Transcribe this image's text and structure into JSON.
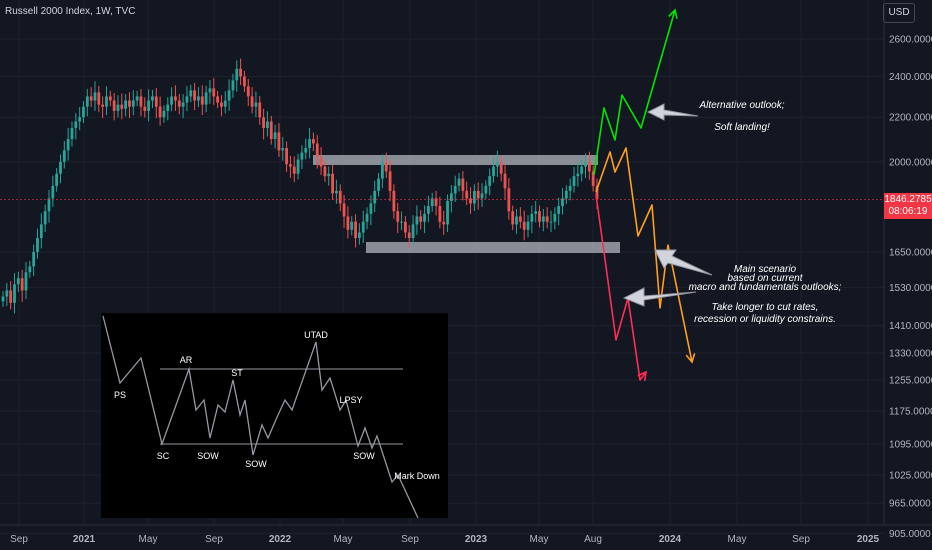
{
  "header": {
    "title": "Russell 2000 Index, 1W, TVC",
    "currency_button": "USD"
  },
  "last_price": {
    "value": "1846.2785",
    "countdown": "08:06:19",
    "color": "#f23645"
  },
  "annotations": {
    "alt_line1": "Alternative outlook;",
    "alt_line2": "Soft landing!",
    "main_line1": "Main scenario",
    "main_line2": "based on current",
    "main_line3": "macro and fundamentals outlooks;",
    "main_line4": "Take longer to cut rates,",
    "main_line5": "recession or liquidity constrains."
  },
  "wyckoff_labels": [
    "PS",
    "AR",
    "ST",
    "UTAD",
    "LPSY",
    "SC",
    "SOW",
    "SOW",
    "SOW",
    "Mark Down"
  ],
  "colors": {
    "up": "#26a69a",
    "down": "#ef5350",
    "bg": "#131722",
    "grid": "#1e222d",
    "green_path": "#00e600",
    "orange_path": "#ff9f1c",
    "red_path": "#ff2d55",
    "zone": "#b2b5be"
  },
  "chart_data": {
    "type": "candlestick",
    "title": "Russell 2000 Index, 1W, TVC",
    "y_axis_ticks": [
      2600,
      2400,
      2200,
      2000,
      1846.2785,
      1650,
      1530,
      1410,
      1330,
      1255,
      1175,
      1095,
      1025,
      965,
      905
    ],
    "y_axis_labels": [
      "2600.0000",
      "2400.0000",
      "2200.0000",
      "2000.0000",
      "1650.0000",
      "1530.0000",
      "1410.0000",
      "1330.0000",
      "1255.0000",
      "1175.0000",
      "1095.0000",
      "1025.0000",
      "965.0000",
      "905.0000"
    ],
    "x_axis_labels": [
      "Sep",
      "2021",
      "May",
      "Sep",
      "2022",
      "May",
      "Sep",
      "2023",
      "May",
      "Aug",
      "2024",
      "May",
      "Sep",
      "2025"
    ],
    "y_scale": "log",
    "ylim": [
      905,
      2600
    ],
    "weekly_close": [
      1500,
      1520,
      1480,
      1540,
      1560,
      1520,
      1580,
      1600,
      1650,
      1700,
      1750,
      1800,
      1850,
      1900,
      1950,
      2000,
      2050,
      2100,
      2150,
      2180,
      2200,
      2250,
      2300,
      2280,
      2320,
      2260,
      2250,
      2300,
      2280,
      2230,
      2260,
      2240,
      2280,
      2250,
      2280,
      2300,
      2250,
      2230,
      2280,
      2300,
      2250,
      2200,
      2230,
      2260,
      2300,
      2280,
      2250,
      2270,
      2300,
      2330,
      2280,
      2300,
      2260,
      2320,
      2340,
      2300,
      2270,
      2250,
      2280,
      2330,
      2380,
      2440,
      2400,
      2350,
      2300,
      2250,
      2270,
      2200,
      2150,
      2180,
      2100,
      2130,
      2050,
      2060,
      1990,
      1980,
      1950,
      2010,
      2040,
      2060,
      2100,
      2080,
      2020,
      1980,
      1940,
      1950,
      1870,
      1880,
      1830,
      1780,
      1730,
      1760,
      1700,
      1720,
      1760,
      1790,
      1830,
      1880,
      1930,
      2000,
      1960,
      1880,
      1800,
      1760,
      1760,
      1720,
      1700,
      1750,
      1780,
      1760,
      1790,
      1820,
      1850,
      1820,
      1760,
      1750,
      1840,
      1870,
      1900,
      1930,
      1880,
      1850,
      1830,
      1880,
      1850,
      1870,
      1900,
      1940,
      1980,
      2000,
      1950,
      1890,
      1800,
      1750,
      1780,
      1760,
      1730,
      1760,
      1790,
      1800,
      1760,
      1780,
      1760,
      1760,
      1790,
      1820,
      1850,
      1880,
      1900,
      1940,
      1950,
      1980,
      2000,
      1960,
      1900,
      1846
    ]
  }
}
